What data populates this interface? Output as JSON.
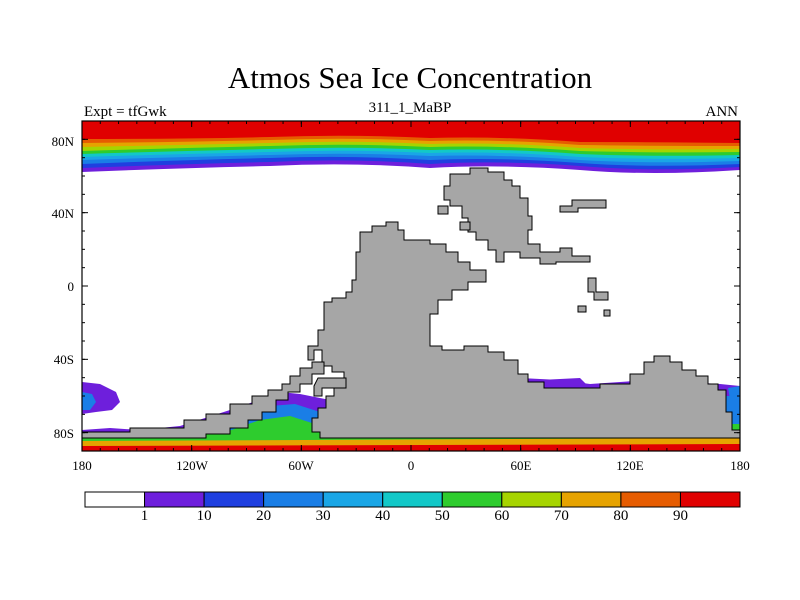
{
  "title": "Atmos Sea Ice Concentration",
  "subtitle": "311_1_MaBP",
  "left_string": "Expt = tfGwk",
  "right_string": "ANN",
  "lat_labels": [
    "80N",
    "40N",
    "0",
    "40S",
    "80S"
  ],
  "lon_labels": [
    "180",
    "120W",
    "60W",
    "0",
    "60E",
    "120E",
    "180"
  ],
  "colorbar": {
    "labels": [
      "1",
      "10",
      "20",
      "30",
      "40",
      "50",
      "60",
      "70",
      "80",
      "90"
    ],
    "colors": [
      "#ffffff",
      "#6e1fdc",
      "#1f3fe0",
      "#1a7ee6",
      "#1aa6e6",
      "#12c8c8",
      "#2ecc2e",
      "#a6d400",
      "#e6a300",
      "#e65c00",
      "#e00000"
    ]
  },
  "land_color": "#a6a6a6"
}
